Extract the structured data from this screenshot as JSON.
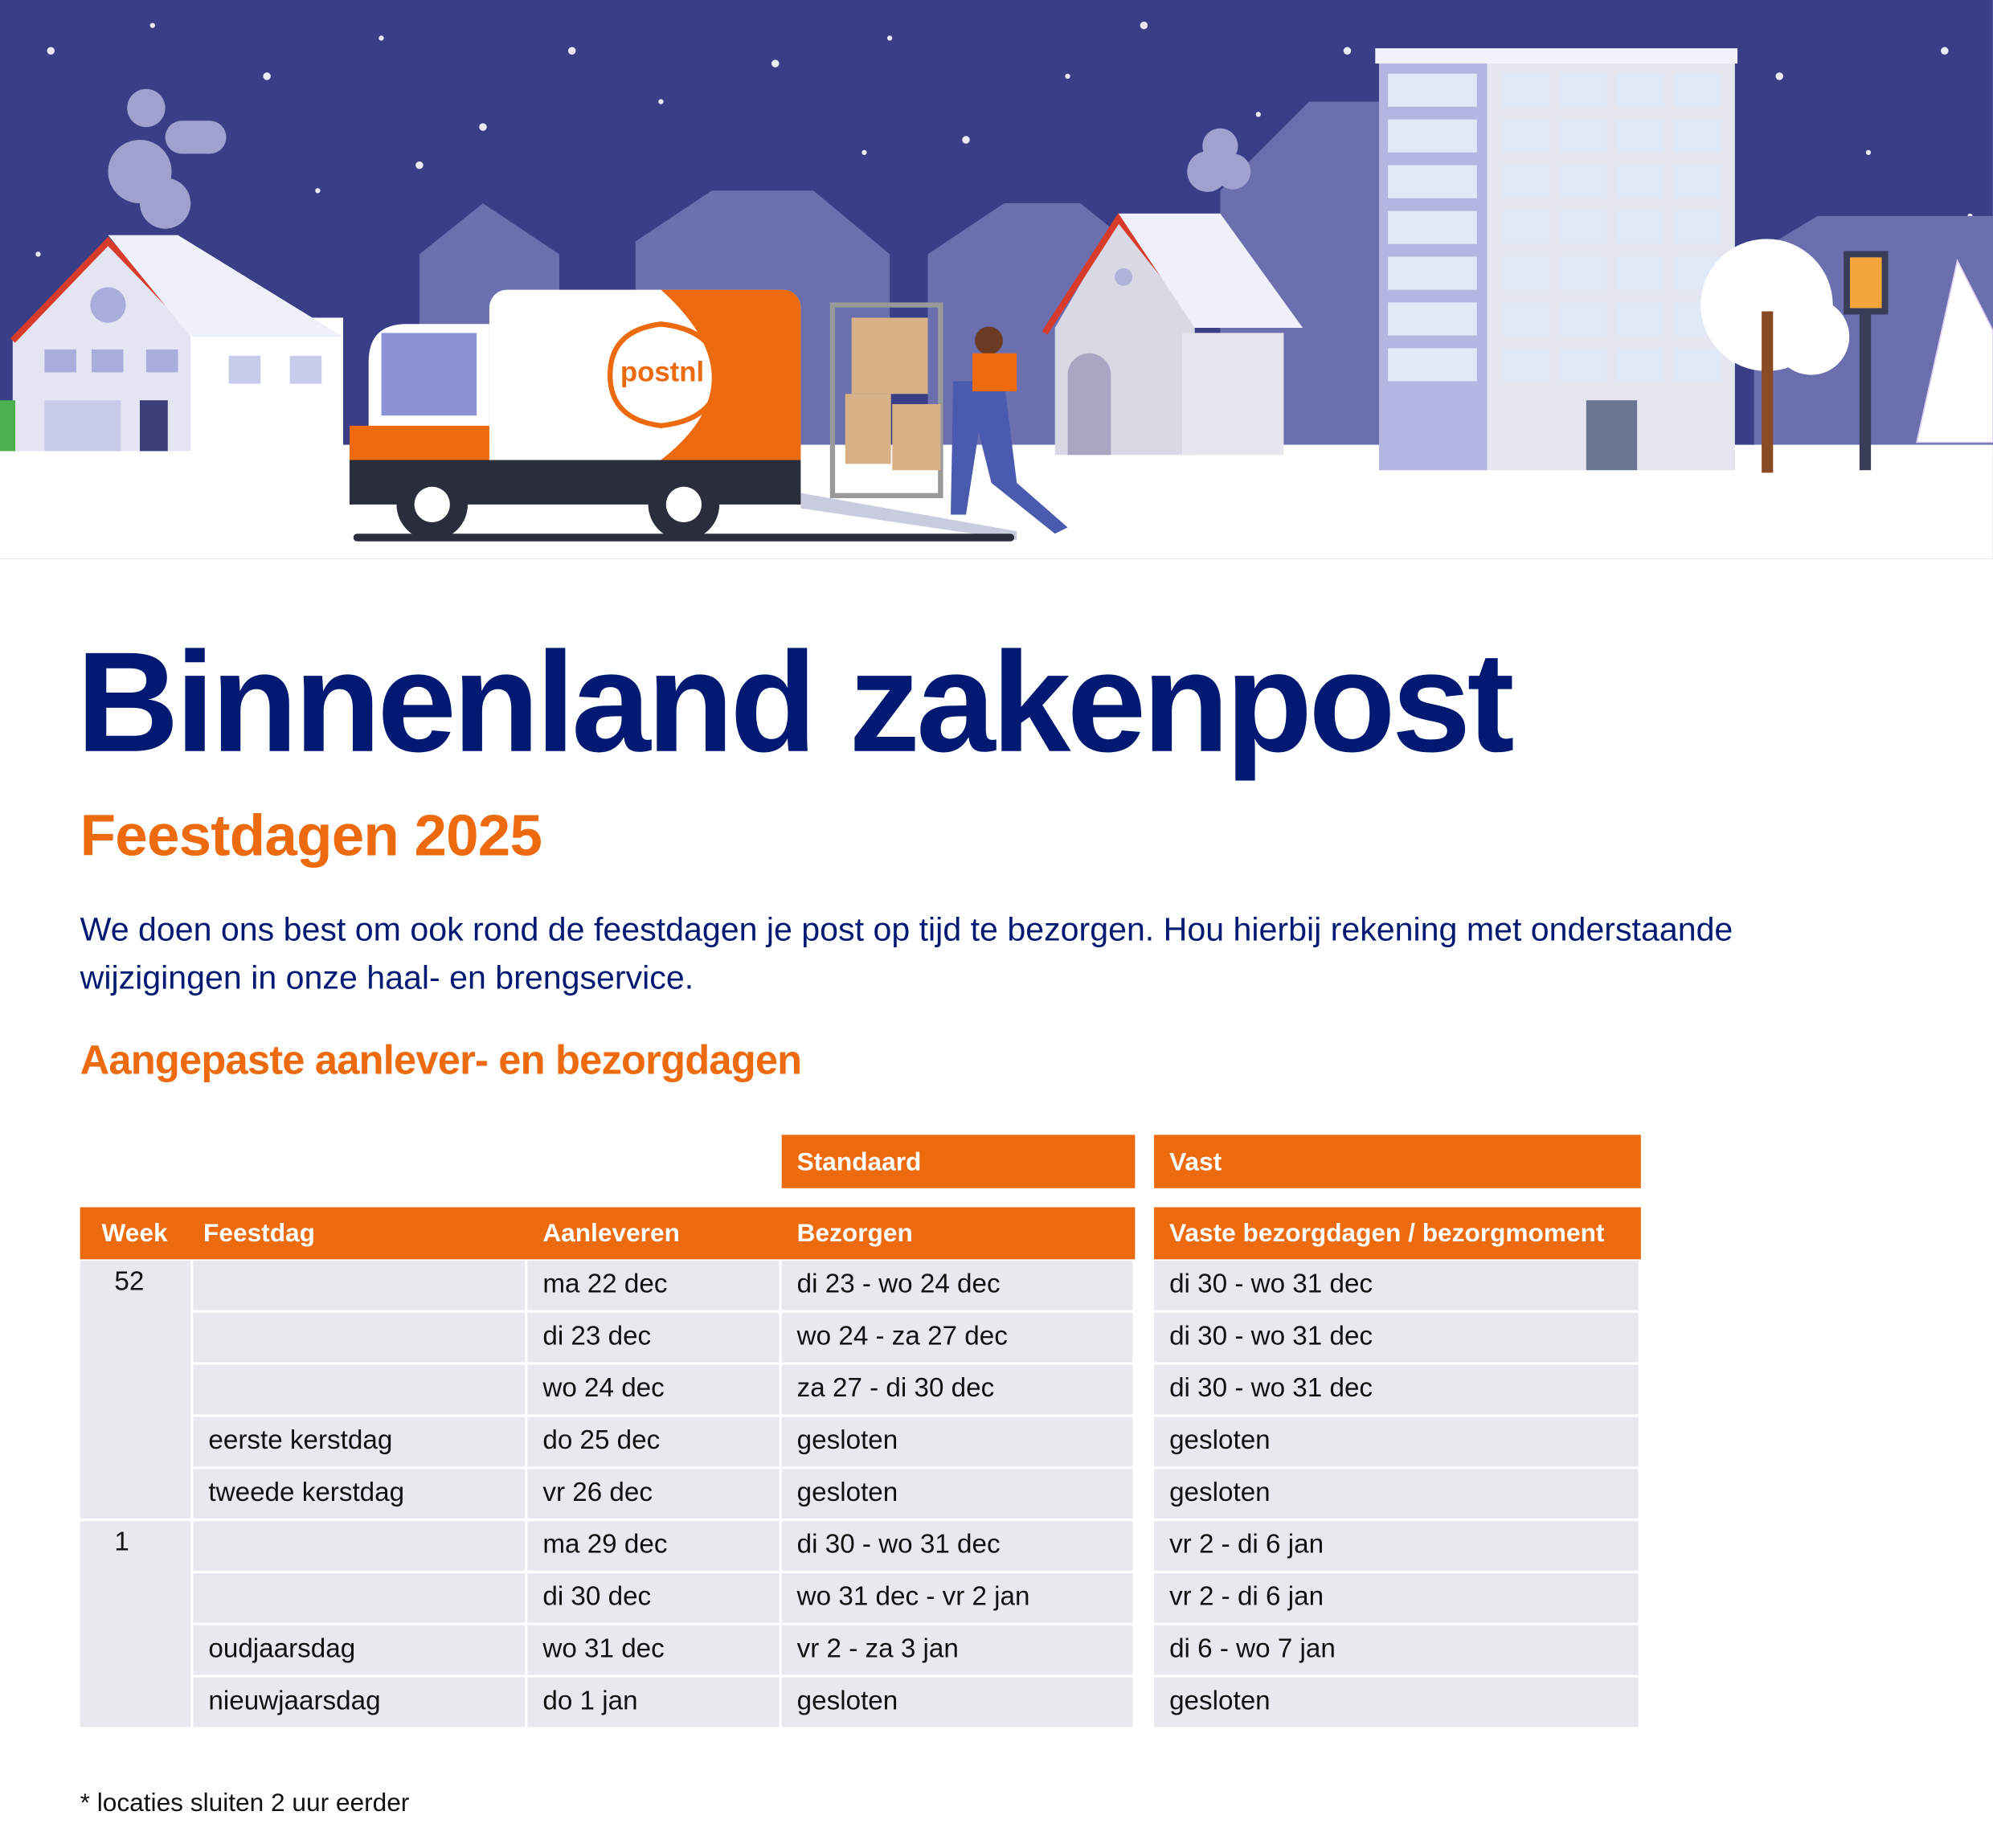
{
  "illustration": {
    "logo": "postnl"
  },
  "header": {
    "title": "Binnenland zakenpost",
    "subtitle": "Feestdagen 2025",
    "intro": "We doen ons best om ook rond de feestdagen je post op tijd te bezorgen. Hou hierbij rekening met onderstaande wijzigingen in onze haal- en brengservice."
  },
  "section": {
    "title": "Aangepaste aanlever- en bezorgdagen"
  },
  "table": {
    "groups": {
      "standaard": "Standaard",
      "vast": "Vast"
    },
    "columns": {
      "week": "Week",
      "feestdag": "Feestdag",
      "aanleveren": "Aanleveren",
      "bezorgen": "Bezorgen",
      "vast": "Vaste bezorgdagen / bezorgmoment"
    },
    "weeks": [
      {
        "week": "52",
        "rows": [
          {
            "aanleveren": "ma 22 dec",
            "bezorgen": "di 23 - wo 24 dec",
            "vast": "di 30 - wo 31 dec"
          },
          {
            "aanleveren": "di 23 dec",
            "bezorgen": "wo 24 - za 27 dec",
            "vast": "di 30 - wo 31 dec"
          },
          {
            "aanleveren": "wo 24 dec",
            "bezorgen": "za 27 - di 30 dec",
            "vast": "di 30 - wo 31 dec"
          },
          {
            "feestdag": "eerste kerstdag",
            "aanleveren": "do 25 dec",
            "bezorgen": "gesloten",
            "vast": "gesloten"
          },
          {
            "feestdag": "tweede kerstdag",
            "aanleveren": "vr 26 dec",
            "bezorgen": "gesloten",
            "vast": "gesloten"
          }
        ]
      },
      {
        "week": "1",
        "rows": [
          {
            "aanleveren": "ma 29 dec",
            "bezorgen": "di 30 - wo 31 dec",
            "vast": "vr 2 - di 6 jan"
          },
          {
            "aanleveren": "di 30 dec",
            "bezorgen": "wo 31 dec - vr 2 jan",
            "vast": "vr 2 - di 6 jan"
          },
          {
            "feestdag": "oudjaarsdag",
            "aanleveren": "wo 31 dec",
            "bezorgen": "vr 2 - za 3 jan",
            "vast": "di 6 - wo 7 jan"
          },
          {
            "feestdag": "nieuwjaarsdag",
            "aanleveren": "do 1 jan",
            "bezorgen": "gesloten",
            "vast": "gesloten"
          }
        ]
      }
    ]
  },
  "footnote": "* locaties sluiten 2 uur eerder"
}
